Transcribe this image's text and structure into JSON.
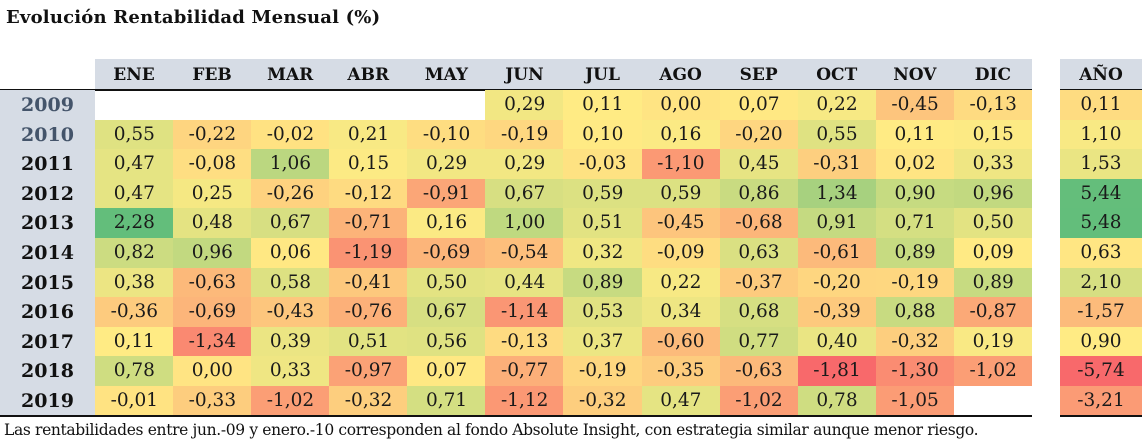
{
  "title": "Evolución Rentabilidad Mensual (%)",
  "footnote": "Las rentabilidades entre jun.-09 y enero.-10 corresponden al fondo Absolute Insight, con estrategia similar aunque menor riesgo.",
  "colors": {
    "header_bg": "#d6dce5",
    "scale_min": "#f8696b",
    "scale_mid": "#ffeb84",
    "scale_max": "#63be7b",
    "year_dim": "#44546a"
  },
  "chart_data": {
    "type": "heatmap",
    "title": "Evolución Rentabilidad Mensual (%)",
    "months": [
      "ENE",
      "FEB",
      "MAR",
      "ABR",
      "MAY",
      "JUN",
      "JUL",
      "AGO",
      "SEP",
      "OCT",
      "NOV",
      "DIC"
    ],
    "annual_label": "AÑO",
    "years": [
      "2009",
      "2010",
      "2011",
      "2012",
      "2013",
      "2014",
      "2015",
      "2016",
      "2017",
      "2018",
      "2019"
    ],
    "monthly": [
      [
        null,
        null,
        null,
        null,
        null,
        "0,29",
        "0,11",
        "0,00",
        "0,07",
        "0,22",
        "-0,45",
        "-0,13"
      ],
      [
        "0,55",
        "-0,22",
        "-0,02",
        "0,21",
        "-0,10",
        "-0,19",
        "0,10",
        "0,16",
        "-0,20",
        "0,55",
        "0,11",
        "0,15"
      ],
      [
        "0,47",
        "-0,08",
        "1,06",
        "0,15",
        "0,29",
        "0,29",
        "-0,03",
        "-1,10",
        "0,45",
        "-0,31",
        "0,02",
        "0,33"
      ],
      [
        "0,47",
        "0,25",
        "-0,26",
        "-0,12",
        "-0,91",
        "0,67",
        "0,59",
        "0,59",
        "0,86",
        "1,34",
        "0,90",
        "0,96"
      ],
      [
        "2,28",
        "0,48",
        "0,67",
        "-0,71",
        "0,16",
        "1,00",
        "0,51",
        "-0,45",
        "-0,68",
        "0,91",
        "0,71",
        "0,50"
      ],
      [
        "0,82",
        "0,96",
        "0,06",
        "-1,19",
        "-0,69",
        "-0,54",
        "0,32",
        "-0,09",
        "0,63",
        "-0,61",
        "0,89",
        "0,09"
      ],
      [
        "0,38",
        "-0,63",
        "0,58",
        "-0,41",
        "0,50",
        "0,44",
        "0,89",
        "0,22",
        "-0,37",
        "-0,20",
        "-0,19",
        "0,89"
      ],
      [
        "-0,36",
        "-0,69",
        "-0,43",
        "-0,76",
        "0,67",
        "-1,14",
        "0,53",
        "0,34",
        "0,68",
        "-0,39",
        "0,88",
        "-0,87"
      ],
      [
        "0,11",
        "-1,34",
        "0,39",
        "0,51",
        "0,56",
        "-0,13",
        "0,37",
        "-0,60",
        "0,77",
        "0,40",
        "-0,32",
        "0,19"
      ],
      [
        "0,78",
        "0,00",
        "0,33",
        "-0,97",
        "0,07",
        "-0,77",
        "-0,19",
        "-0,35",
        "-0,63",
        "-1,81",
        "-1,30",
        "-1,02"
      ],
      [
        "-0,01",
        "-0,33",
        "-1,02",
        "-0,32",
        "0,71",
        "-1,12",
        "-0,32",
        "0,47",
        "-1,02",
        "0,78",
        "-1,05",
        null
      ]
    ],
    "annual": [
      "0,11",
      "1,10",
      "1,53",
      "5,44",
      "5,48",
      "0,63",
      "2,10",
      "-1,57",
      "0,90",
      "-5,74",
      "-3,21"
    ],
    "unit": "%",
    "color_scale": "red (min) - yellow (median) - green (max)"
  }
}
